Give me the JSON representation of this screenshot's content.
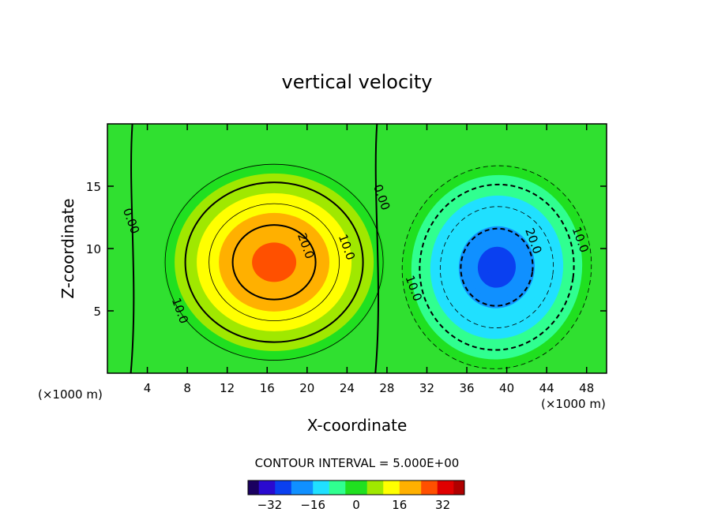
{
  "chart_data": {
    "type": "heatmap",
    "title": "vertical velocity",
    "xlabel": "X-coordinate",
    "ylabel": "Z-coordinate",
    "x_unit_left": "(×1000 m)",
    "x_unit_right": "(×1000 m)",
    "xlim": [
      0,
      50
    ],
    "ylim": [
      0,
      20
    ],
    "x_ticks": [
      4,
      8,
      12,
      16,
      20,
      24,
      28,
      32,
      36,
      40,
      44,
      48
    ],
    "y_ticks": [
      5,
      10,
      15
    ],
    "contour_interval_text": "CONTOUR INTERVAL = 5.000E+00",
    "contour_interval": 5.0,
    "colorbar": {
      "range": [
        -40,
        40
      ],
      "ticks": [
        -32,
        -16,
        0,
        16,
        32
      ],
      "colors": [
        "#1a0060",
        "#2a0ad0",
        "#0a40f0",
        "#1090ff",
        "#20e0ff",
        "#30ff90",
        "#20e020",
        "#a0e800",
        "#ffff00",
        "#ffb000",
        "#ff5000",
        "#e00000",
        "#b00000"
      ]
    },
    "contour_labels": [
      {
        "text": "0.00",
        "x": 2.0,
        "z": 12.1
      },
      {
        "text": "0.00",
        "x": 27.1,
        "z": 14.0
      },
      {
        "text": "10.0",
        "x": 6.9,
        "z": 4.9
      },
      {
        "text": "10.0",
        "x": 23.6,
        "z": 10.0
      },
      {
        "text": "20.0",
        "x": 19.5,
        "z": 10.1
      },
      {
        "text": "10.0",
        "x": 30.3,
        "z": 6.7
      },
      {
        "text": "20.0",
        "x": 42.3,
        "z": 10.5
      },
      {
        "text": "10.0",
        "x": 47.0,
        "z": 10.6
      }
    ],
    "features": {
      "updraft": {
        "center_x": 16.7,
        "center_z": 8.9,
        "max": 28
      },
      "downdraft": {
        "center_x": 39.0,
        "center_z": 8.5,
        "min": -27
      }
    }
  }
}
